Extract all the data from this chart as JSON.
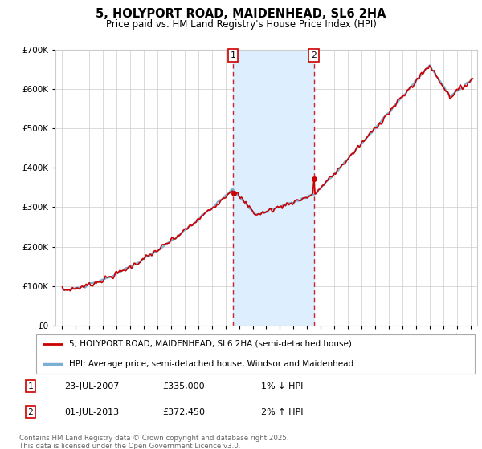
{
  "title": "5, HOLYPORT ROAD, MAIDENHEAD, SL6 2HA",
  "subtitle": "Price paid vs. HM Land Registry's House Price Index (HPI)",
  "ylim": [
    0,
    700000
  ],
  "xlim_start": 1994.5,
  "xlim_end": 2025.5,
  "sale1_date": 2007.55,
  "sale1_label": "1",
  "sale1_price": 335000,
  "sale1_price_str": "£335,000",
  "sale1_date_str": "23-JUL-2007",
  "sale1_hpi_str": "1% ↓ HPI",
  "sale2_date": 2013.5,
  "sale2_label": "2",
  "sale2_price": 372450,
  "sale2_price_str": "£372,450",
  "sale2_date_str": "01-JUL-2013",
  "sale2_hpi_str": "2% ↑ HPI",
  "legend1": "5, HOLYPORT ROAD, MAIDENHEAD, SL6 2HA (semi-detached house)",
  "legend2": "HPI: Average price, semi-detached house, Windsor and Maidenhead",
  "footer": "Contains HM Land Registry data © Crown copyright and database right 2025.\nThis data is licensed under the Open Government Licence v3.0.",
  "line_red": "#cc0000",
  "line_blue": "#7ab0d4",
  "shade_color": "#ddeeff",
  "grid_color": "#cccccc",
  "bg_color": "#ffffff"
}
